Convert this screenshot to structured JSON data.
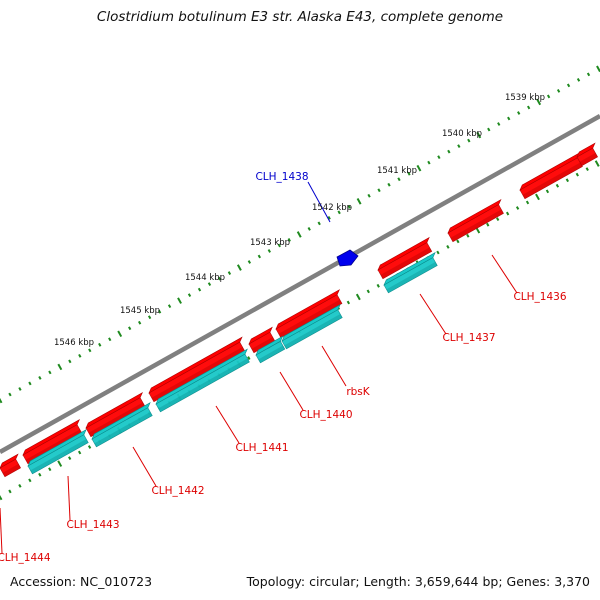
{
  "title": "Clostridium botulinum E3 str. Alaska E43, complete genome",
  "footer": {
    "accession": "Accession: NC_010723",
    "summary": "Topology: circular; Length: 3,659,644 bp; Genes: 3,370"
  },
  "colors": {
    "forward_cds": "#ff0000",
    "forward_cds_dark": "#b00000",
    "reverse_cds": "#19c8c8",
    "reverse_cds_dark": "#0a8c8c",
    "highlight_gene": "#0000ee",
    "backbone": "#808080",
    "ticks": "#1f8a1f",
    "gene_label": "#dd0000",
    "highlight_label": "#0000cc"
  },
  "scale_labels": [
    "1539 kbp",
    "1540 kbp",
    "1541 kbp",
    "1542 kbp",
    "1543 kbp",
    "1544 kbp",
    "1545 kbp",
    "1546 kbp"
  ],
  "gene_labels": [
    {
      "name": "CLH_1436"
    },
    {
      "name": "CLH_1437"
    },
    {
      "name": "rbsK"
    },
    {
      "name": "CLH_1440"
    },
    {
      "name": "CLH_1441"
    },
    {
      "name": "CLH_1442"
    },
    {
      "name": "CLH_1443"
    },
    {
      "name": "CLH_1444"
    }
  ],
  "highlight_label": "CLH_1438"
}
